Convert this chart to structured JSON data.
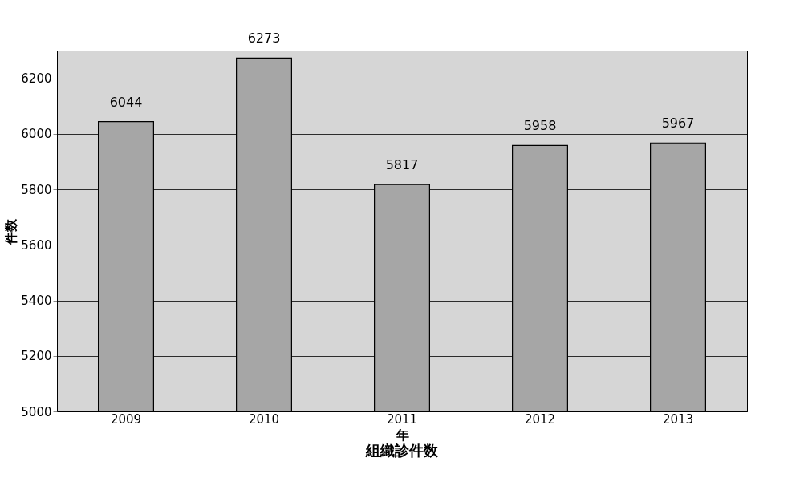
{
  "chart_data": {
    "type": "bar",
    "title": "組織診件数",
    "xlabel": "年",
    "ylabel": "件数",
    "categories": [
      "2009",
      "2010",
      "2011",
      "2012",
      "2013"
    ],
    "values": [
      6044,
      6273,
      5817,
      5958,
      5967
    ],
    "color": "#a6a6a6",
    "ylim": [
      5000,
      6300
    ],
    "yticks": [
      5000,
      5200,
      5400,
      5600,
      5800,
      6000,
      6200
    ],
    "grid": "y",
    "data_labels": true
  }
}
